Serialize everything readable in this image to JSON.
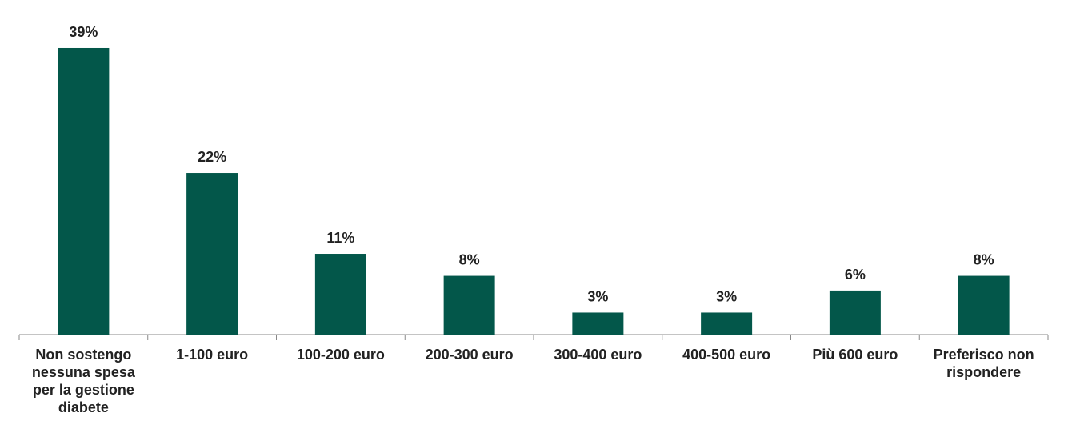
{
  "chart_data": {
    "type": "bar",
    "categories": [
      "Non sostengo nessuna spesa per la gestione diabete",
      "1-100 euro",
      "100-200 euro",
      "200-300 euro",
      "300-400 euro",
      "400-500 euro",
      "Più 600 euro",
      "Preferisco non rispondere"
    ],
    "values": [
      39,
      22,
      11,
      8,
      3,
      3,
      6,
      8
    ],
    "value_labels": [
      "39%",
      "22%",
      "11%",
      "8%",
      "3%",
      "3%",
      "6%",
      "8%"
    ],
    "color": "#03574a"
  }
}
